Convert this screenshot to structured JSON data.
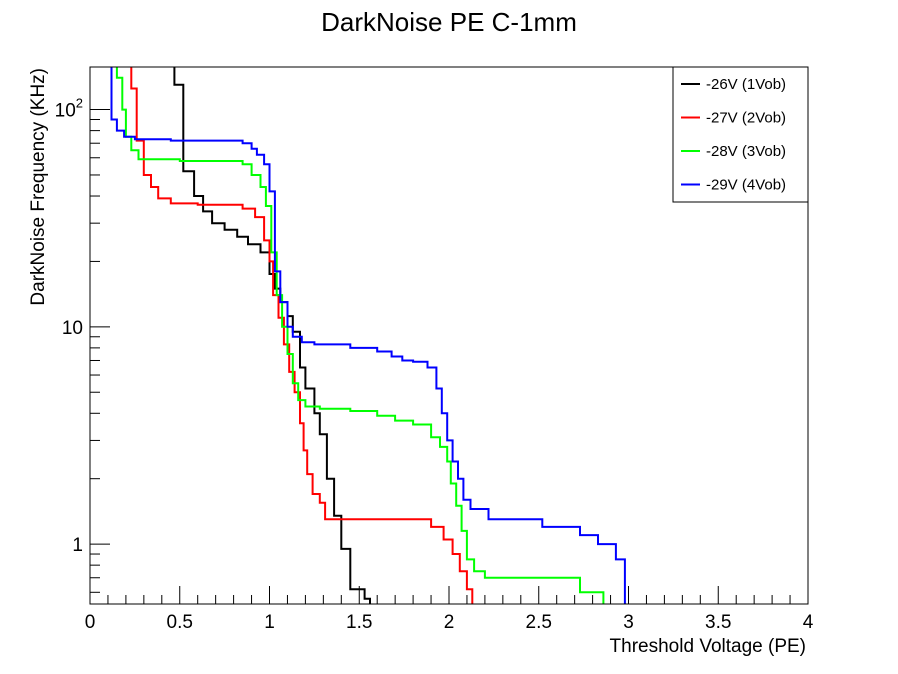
{
  "chart_data": {
    "type": "line",
    "title": "DarkNoise PE C-1mm",
    "xlabel": "Threshold Voltage (PE)",
    "ylabel": "DarkNoise Frequency (KHz)",
    "xlim": [
      0,
      4
    ],
    "ylim": [
      0.53,
      157
    ],
    "yscale": "log",
    "grid": false,
    "legend_position": "top-right",
    "x_tick_labels": [
      "0",
      "0.5",
      "1",
      "1.5",
      "2",
      "2.5",
      "3",
      "3.5",
      "4"
    ],
    "x_tick_values": [
      0,
      0.5,
      1,
      1.5,
      2,
      2.5,
      3,
      3.5,
      4
    ],
    "y_tick_labels": [
      {
        "value": 1,
        "base": "1",
        "exp": ""
      },
      {
        "value": 10,
        "base": "10",
        "exp": ""
      },
      {
        "value": 100,
        "base": "10",
        "exp": "2"
      }
    ],
    "series": [
      {
        "name": "-26V (1Vob)",
        "color": "#000000",
        "points": [
          [
            0.47,
            157
          ],
          [
            0.47,
            130
          ],
          [
            0.52,
            130
          ],
          [
            0.52,
            52
          ],
          [
            0.58,
            52
          ],
          [
            0.58,
            40
          ],
          [
            0.63,
            40
          ],
          [
            0.63,
            34
          ],
          [
            0.68,
            34
          ],
          [
            0.68,
            30
          ],
          [
            0.75,
            30
          ],
          [
            0.75,
            28
          ],
          [
            0.82,
            28
          ],
          [
            0.82,
            26
          ],
          [
            0.88,
            26
          ],
          [
            0.88,
            24
          ],
          [
            0.95,
            24
          ],
          [
            0.95,
            22
          ],
          [
            1.0,
            22
          ],
          [
            1.0,
            17.5
          ],
          [
            1.03,
            17.5
          ],
          [
            1.03,
            15
          ],
          [
            1.06,
            15
          ],
          [
            1.06,
            13
          ],
          [
            1.1,
            13
          ],
          [
            1.1,
            11.2
          ],
          [
            1.13,
            11.2
          ],
          [
            1.13,
            9.5
          ],
          [
            1.17,
            9.5
          ],
          [
            1.17,
            6.5
          ],
          [
            1.2,
            6.5
          ],
          [
            1.2,
            5.2
          ],
          [
            1.25,
            5.2
          ],
          [
            1.25,
            4.0
          ],
          [
            1.28,
            4.0
          ],
          [
            1.28,
            3.2
          ],
          [
            1.32,
            3.2
          ],
          [
            1.32,
            2.0
          ],
          [
            1.36,
            2.0
          ],
          [
            1.36,
            1.35
          ],
          [
            1.4,
            1.35
          ],
          [
            1.4,
            0.95
          ],
          [
            1.45,
            0.95
          ],
          [
            1.45,
            0.62
          ],
          [
            1.53,
            0.62
          ],
          [
            1.53,
            0.56
          ],
          [
            1.56,
            0.56
          ],
          [
            1.56,
            0.53
          ]
        ]
      },
      {
        "name": "-27V (2Vob)",
        "color": "#ff0000",
        "points": [
          [
            0.23,
            157
          ],
          [
            0.23,
            125
          ],
          [
            0.26,
            125
          ],
          [
            0.26,
            72
          ],
          [
            0.3,
            72
          ],
          [
            0.3,
            50
          ],
          [
            0.34,
            50
          ],
          [
            0.34,
            44
          ],
          [
            0.38,
            44
          ],
          [
            0.38,
            39
          ],
          [
            0.45,
            39
          ],
          [
            0.45,
            37
          ],
          [
            0.6,
            37
          ],
          [
            0.6,
            36.5
          ],
          [
            0.85,
            36.5
          ],
          [
            0.85,
            35
          ],
          [
            0.92,
            35
          ],
          [
            0.92,
            32
          ],
          [
            0.97,
            32
          ],
          [
            0.97,
            25
          ],
          [
            1.0,
            25
          ],
          [
            1.0,
            20
          ],
          [
            1.02,
            20
          ],
          [
            1.02,
            14
          ],
          [
            1.05,
            14
          ],
          [
            1.05,
            11
          ],
          [
            1.08,
            11
          ],
          [
            1.08,
            8.3
          ],
          [
            1.11,
            8.3
          ],
          [
            1.11,
            6.2
          ],
          [
            1.14,
            6.2
          ],
          [
            1.14,
            5.0
          ],
          [
            1.17,
            5.0
          ],
          [
            1.17,
            3.6
          ],
          [
            1.19,
            3.6
          ],
          [
            1.19,
            2.7
          ],
          [
            1.21,
            2.7
          ],
          [
            1.21,
            2.1
          ],
          [
            1.24,
            2.1
          ],
          [
            1.24,
            1.7
          ],
          [
            1.28,
            1.7
          ],
          [
            1.28,
            1.55
          ],
          [
            1.31,
            1.55
          ],
          [
            1.31,
            1.3
          ],
          [
            1.9,
            1.3
          ],
          [
            1.9,
            1.2
          ],
          [
            1.97,
            1.2
          ],
          [
            1.97,
            1.05
          ],
          [
            2.02,
            1.05
          ],
          [
            2.02,
            0.9
          ],
          [
            2.06,
            0.9
          ],
          [
            2.06,
            0.75
          ],
          [
            2.1,
            0.75
          ],
          [
            2.1,
            0.62
          ],
          [
            2.13,
            0.62
          ],
          [
            2.13,
            0.53
          ]
        ]
      },
      {
        "name": "-28V (3Vob)",
        "color": "#00ff00",
        "points": [
          [
            0.15,
            157
          ],
          [
            0.15,
            140
          ],
          [
            0.18,
            140
          ],
          [
            0.18,
            100
          ],
          [
            0.2,
            100
          ],
          [
            0.2,
            75
          ],
          [
            0.23,
            75
          ],
          [
            0.23,
            65
          ],
          [
            0.27,
            65
          ],
          [
            0.27,
            59
          ],
          [
            0.5,
            59
          ],
          [
            0.5,
            58
          ],
          [
            0.85,
            58
          ],
          [
            0.85,
            56
          ],
          [
            0.9,
            56
          ],
          [
            0.9,
            50
          ],
          [
            0.95,
            50
          ],
          [
            0.95,
            44
          ],
          [
            0.98,
            44
          ],
          [
            0.98,
            36
          ],
          [
            1.01,
            36
          ],
          [
            1.01,
            22
          ],
          [
            1.04,
            22
          ],
          [
            1.04,
            14
          ],
          [
            1.07,
            14
          ],
          [
            1.07,
            10
          ],
          [
            1.1,
            10
          ],
          [
            1.1,
            7.5
          ],
          [
            1.13,
            7.5
          ],
          [
            1.13,
            5.5
          ],
          [
            1.16,
            5.5
          ],
          [
            1.16,
            4.6
          ],
          [
            1.2,
            4.6
          ],
          [
            1.2,
            4.3
          ],
          [
            1.28,
            4.3
          ],
          [
            1.28,
            4.2
          ],
          [
            1.45,
            4.2
          ],
          [
            1.45,
            4.1
          ],
          [
            1.6,
            4.1
          ],
          [
            1.6,
            3.9
          ],
          [
            1.7,
            3.9
          ],
          [
            1.7,
            3.7
          ],
          [
            1.8,
            3.7
          ],
          [
            1.8,
            3.55
          ],
          [
            1.9,
            3.55
          ],
          [
            1.9,
            3.1
          ],
          [
            1.95,
            3.1
          ],
          [
            1.95,
            2.8
          ],
          [
            1.99,
            2.8
          ],
          [
            1.99,
            2.4
          ],
          [
            2.01,
            2.4
          ],
          [
            2.01,
            1.9
          ],
          [
            2.04,
            1.9
          ],
          [
            2.04,
            1.5
          ],
          [
            2.07,
            1.5
          ],
          [
            2.07,
            1.15
          ],
          [
            2.1,
            1.15
          ],
          [
            2.1,
            0.85
          ],
          [
            2.14,
            0.85
          ],
          [
            2.14,
            0.75
          ],
          [
            2.2,
            0.75
          ],
          [
            2.2,
            0.7
          ],
          [
            2.73,
            0.7
          ],
          [
            2.73,
            0.6
          ],
          [
            2.86,
            0.6
          ],
          [
            2.86,
            0.53
          ]
        ]
      },
      {
        "name": "-29V (4Vob)",
        "color": "#0000ff",
        "points": [
          [
            0.12,
            157
          ],
          [
            0.12,
            90
          ],
          [
            0.15,
            90
          ],
          [
            0.15,
            80
          ],
          [
            0.19,
            80
          ],
          [
            0.19,
            75
          ],
          [
            0.25,
            75
          ],
          [
            0.25,
            73
          ],
          [
            0.45,
            73
          ],
          [
            0.45,
            72
          ],
          [
            0.85,
            72
          ],
          [
            0.85,
            70
          ],
          [
            0.9,
            70
          ],
          [
            0.9,
            66
          ],
          [
            0.93,
            66
          ],
          [
            0.93,
            62
          ],
          [
            0.97,
            62
          ],
          [
            0.97,
            56
          ],
          [
            1.0,
            56
          ],
          [
            1.0,
            42
          ],
          [
            1.03,
            42
          ],
          [
            1.03,
            18
          ],
          [
            1.06,
            18
          ],
          [
            1.06,
            13
          ],
          [
            1.1,
            13
          ],
          [
            1.1,
            10
          ],
          [
            1.13,
            10
          ],
          [
            1.13,
            9
          ],
          [
            1.18,
            9
          ],
          [
            1.18,
            8.5
          ],
          [
            1.25,
            8.5
          ],
          [
            1.25,
            8.3
          ],
          [
            1.45,
            8.3
          ],
          [
            1.45,
            8.0
          ],
          [
            1.6,
            8.0
          ],
          [
            1.6,
            7.7
          ],
          [
            1.68,
            7.7
          ],
          [
            1.68,
            7.3
          ],
          [
            1.74,
            7.3
          ],
          [
            1.74,
            7.0
          ],
          [
            1.8,
            7.0
          ],
          [
            1.8,
            6.9
          ],
          [
            1.88,
            6.9
          ],
          [
            1.88,
            6.5
          ],
          [
            1.93,
            6.5
          ],
          [
            1.93,
            5.2
          ],
          [
            1.96,
            5.2
          ],
          [
            1.96,
            4.0
          ],
          [
            1.99,
            4.0
          ],
          [
            1.99,
            3.0
          ],
          [
            2.02,
            3.0
          ],
          [
            2.02,
            2.4
          ],
          [
            2.05,
            2.4
          ],
          [
            2.05,
            2.0
          ],
          [
            2.08,
            2.0
          ],
          [
            2.08,
            1.6
          ],
          [
            2.12,
            1.6
          ],
          [
            2.12,
            1.45
          ],
          [
            2.22,
            1.45
          ],
          [
            2.22,
            1.3
          ],
          [
            2.52,
            1.3
          ],
          [
            2.52,
            1.2
          ],
          [
            2.73,
            1.2
          ],
          [
            2.73,
            1.1
          ],
          [
            2.83,
            1.1
          ],
          [
            2.83,
            1.0
          ],
          [
            2.93,
            1.0
          ],
          [
            2.93,
            0.85
          ],
          [
            2.98,
            0.85
          ],
          [
            2.98,
            0.53
          ]
        ]
      }
    ]
  }
}
